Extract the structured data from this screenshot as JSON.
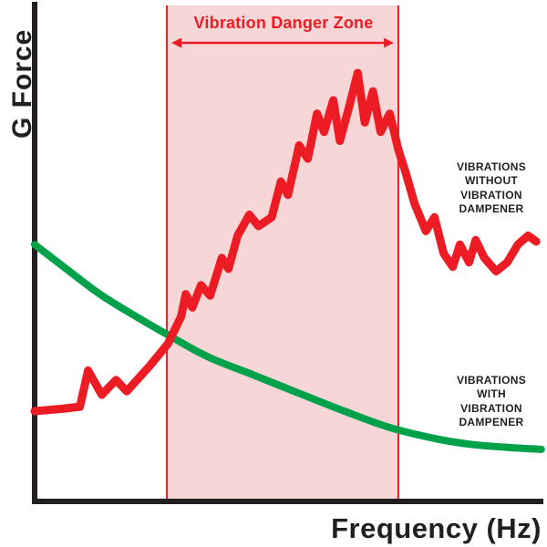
{
  "page": {
    "background": "#ffffff"
  },
  "chart_data": {
    "type": "line",
    "title": "",
    "xlabel": "Frequency (Hz)",
    "ylabel": "G Force",
    "x_range": [
      0,
      100
    ],
    "y_range": [
      0,
      100
    ],
    "grid": false,
    "legend_position": "inline-annotations",
    "axis_color": "#231f20",
    "danger_zone": {
      "label": "Vibration Danger Zone",
      "x_start": 26,
      "x_end": 71.5,
      "fill": "#f7d6d8",
      "border_color": "#ed1c24",
      "label_color": "#ed1c24",
      "arrow": "double-headed"
    },
    "series": [
      {
        "name": "Vibrations without vibration dampener",
        "annotation": "VIBRATIONS\nWITHOUT\nVIBRATION\nDAMPENER",
        "color": "#ed1c24",
        "width": 9,
        "smooth": false,
        "points": [
          [
            0,
            18.2
          ],
          [
            5.7,
            18.7
          ],
          [
            8.9,
            19.1
          ],
          [
            10.5,
            26.4
          ],
          [
            13.2,
            21.5
          ],
          [
            16,
            24.5
          ],
          [
            18.1,
            22.2
          ],
          [
            22.6,
            27.3
          ],
          [
            26.2,
            31.8
          ],
          [
            28.8,
            37.3
          ],
          [
            29.7,
            41.8
          ],
          [
            31,
            39.1
          ],
          [
            32.7,
            43.6
          ],
          [
            34.5,
            41.5
          ],
          [
            36.8,
            49.1
          ],
          [
            38.1,
            46.9
          ],
          [
            39.9,
            53.6
          ],
          [
            42.2,
            57.8
          ],
          [
            44,
            55.5
          ],
          [
            46.6,
            57.3
          ],
          [
            48.4,
            64.5
          ],
          [
            49.8,
            61.8
          ],
          [
            52,
            71.8
          ],
          [
            53.7,
            69.1
          ],
          [
            55.5,
            78.2
          ],
          [
            56.9,
            74.5
          ],
          [
            58.7,
            80.9
          ],
          [
            60,
            72.7
          ],
          [
            61.7,
            79.1
          ],
          [
            63.5,
            86.4
          ],
          [
            64.9,
            76.4
          ],
          [
            66.5,
            82.7
          ],
          [
            68,
            74.5
          ],
          [
            69.8,
            78.2
          ],
          [
            71.5,
            70.9
          ],
          [
            72.9,
            66.4
          ],
          [
            74.7,
            60
          ],
          [
            76.9,
            54.5
          ],
          [
            78.6,
            57.3
          ],
          [
            80.4,
            50
          ],
          [
            82.2,
            47.3
          ],
          [
            83.6,
            51.8
          ],
          [
            85.4,
            48.2
          ],
          [
            86.7,
            52.7
          ],
          [
            88.4,
            49.1
          ],
          [
            90.7,
            46.4
          ],
          [
            92.9,
            48.2
          ],
          [
            95,
            51.8
          ],
          [
            97,
            53.6
          ],
          [
            98.6,
            52.4
          ]
        ]
      },
      {
        "name": "Vibrations with vibration dampener",
        "annotation": "VIBRATIONS\nWITH\nVIBRATION\nDAMPENER",
        "color": "#00a14b",
        "width": 8,
        "smooth": true,
        "points": [
          [
            0,
            51.8
          ],
          [
            5.7,
            47.3
          ],
          [
            12.8,
            41.8
          ],
          [
            19.9,
            37.3
          ],
          [
            27,
            33.1
          ],
          [
            34.2,
            29.1
          ],
          [
            43,
            25.5
          ],
          [
            52,
            21.8
          ],
          [
            60.9,
            18.2
          ],
          [
            69.8,
            14.9
          ],
          [
            78.6,
            12.7
          ],
          [
            85.8,
            11.5
          ],
          [
            92.9,
            10.9
          ],
          [
            99.6,
            10.5
          ]
        ]
      }
    ]
  }
}
